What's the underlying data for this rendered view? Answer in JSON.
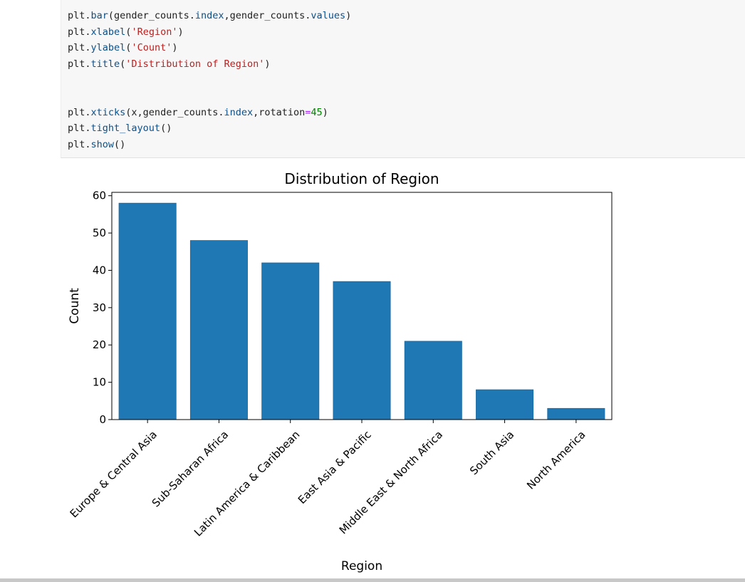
{
  "code_cell": {
    "lines": [
      [
        {
          "t": "plt.",
          "c": ""
        },
        {
          "t": "bar",
          "c": "fn"
        },
        {
          "t": "(gender_counts.",
          "c": ""
        },
        {
          "t": "index",
          "c": "fn"
        },
        {
          "t": ",gender_counts.",
          "c": ""
        },
        {
          "t": "values",
          "c": "fn"
        },
        {
          "t": ")",
          "c": ""
        }
      ],
      [
        {
          "t": "plt.",
          "c": ""
        },
        {
          "t": "xlabel",
          "c": "fn"
        },
        {
          "t": "(",
          "c": ""
        },
        {
          "t": "'Region'",
          "c": "str"
        },
        {
          "t": ")",
          "c": ""
        }
      ],
      [
        {
          "t": "plt.",
          "c": ""
        },
        {
          "t": "ylabel",
          "c": "fn"
        },
        {
          "t": "(",
          "c": ""
        },
        {
          "t": "'Count'",
          "c": "str"
        },
        {
          "t": ")",
          "c": ""
        }
      ],
      [
        {
          "t": "plt.",
          "c": ""
        },
        {
          "t": "title",
          "c": "fn"
        },
        {
          "t": "(",
          "c": ""
        },
        {
          "t": "'Distribution of Region'",
          "c": "str"
        },
        {
          "t": ")",
          "c": ""
        }
      ],
      [],
      [],
      [
        {
          "t": "plt.",
          "c": ""
        },
        {
          "t": "xticks",
          "c": "fn"
        },
        {
          "t": "(x,gender_counts.",
          "c": ""
        },
        {
          "t": "index",
          "c": "fn"
        },
        {
          "t": ",rotation",
          "c": ""
        },
        {
          "t": "=",
          "c": "op"
        },
        {
          "t": "45",
          "c": "num"
        },
        {
          "t": ")",
          "c": ""
        }
      ],
      [
        {
          "t": "plt.",
          "c": ""
        },
        {
          "t": "tight_layout",
          "c": "fn"
        },
        {
          "t": "()",
          "c": ""
        }
      ],
      [
        {
          "t": "plt.",
          "c": ""
        },
        {
          "t": "show",
          "c": "fn"
        },
        {
          "t": "()",
          "c": ""
        }
      ]
    ]
  },
  "colors": {
    "bar": "#1f77b4",
    "bar_edge": "#1a6aa3"
  },
  "chart_data": {
    "type": "bar",
    "title": "Distribution of Region",
    "xlabel": "Region",
    "ylabel": "Count",
    "categories": [
      "Europe & Central Asia",
      "Sub-Saharan Africa",
      "Latin America & Caribbean",
      "East Asia & Pacific",
      "Middle East & North Africa",
      "South Asia",
      "North America"
    ],
    "values": [
      58,
      48,
      42,
      37,
      21,
      8,
      3
    ],
    "ylim": [
      0,
      60.9
    ],
    "yticks": [
      0,
      10,
      20,
      30,
      40,
      50,
      60
    ],
    "xtick_rotation": 45,
    "grid": false,
    "legend": "none"
  }
}
